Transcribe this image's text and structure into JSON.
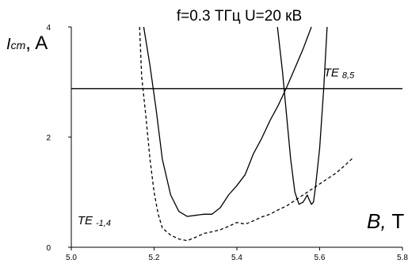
{
  "chart_data": {
    "type": "line",
    "title": "f=0.3 ТГц U=20 кВ",
    "ylabel": {
      "main": "I",
      "sub": "cm",
      "unit": ", A"
    },
    "xlabel": {
      "main": "B,",
      "unit": " T"
    },
    "xlim": [
      5.0,
      5.8
    ],
    "ylim": [
      0,
      4
    ],
    "xticks": [
      "5.0",
      "5.2",
      "5.4",
      "5.6",
      "5.8"
    ],
    "yticks": [
      "0",
      "2",
      "4"
    ],
    "ytick_values": [
      0,
      2,
      4
    ],
    "xtick_values": [
      5.0,
      5.2,
      5.4,
      5.6,
      5.8
    ],
    "grid": false,
    "annotations": [
      {
        "main": "TE",
        "sub": "8,5",
        "x": 5.61,
        "y": 3.1
      },
      {
        "main": "TE",
        "sub": "-1,4",
        "x": 5.015,
        "y": 0.42
      }
    ],
    "series": [
      {
        "style": "solid",
        "x": [
          5.175,
          5.19,
          5.205,
          5.22,
          5.24,
          5.26,
          5.28,
          5.3,
          5.32,
          5.34,
          5.36,
          5.38,
          5.4,
          5.42,
          5.44,
          5.46,
          5.48,
          5.5,
          5.52,
          5.54,
          5.56,
          5.57,
          5.58
        ],
        "y": [
          4.0,
          3.3,
          2.5,
          1.6,
          0.95,
          0.65,
          0.56,
          0.58,
          0.6,
          0.6,
          0.72,
          0.95,
          1.12,
          1.32,
          1.7,
          1.98,
          2.3,
          2.58,
          2.9,
          3.25,
          3.6,
          3.8,
          4.0
        ]
      },
      {
        "style": "solid",
        "x": [
          5.498,
          5.51,
          5.52,
          5.53,
          5.54,
          5.55,
          5.56,
          5.565,
          5.57,
          5.575,
          5.58,
          5.585,
          5.59,
          5.6,
          5.61,
          5.618
        ],
        "y": [
          4.0,
          3.2,
          2.4,
          1.6,
          1.0,
          0.78,
          0.82,
          0.88,
          0.95,
          0.86,
          0.78,
          0.82,
          1.1,
          1.8,
          2.9,
          4.0
        ]
      },
      {
        "style": "dashed",
        "x": [
          5.165,
          5.17,
          5.18,
          5.19,
          5.2,
          5.21,
          5.22,
          5.24,
          5.26,
          5.28,
          5.3,
          5.32,
          5.34,
          5.36,
          5.38,
          5.4,
          5.42,
          5.44,
          5.46,
          5.48,
          5.5,
          5.52,
          5.54,
          5.56,
          5.58,
          5.6,
          5.62,
          5.64,
          5.66,
          5.68
        ],
        "y": [
          4.0,
          3.1,
          2.4,
          1.6,
          1.0,
          0.6,
          0.35,
          0.22,
          0.15,
          0.12,
          0.18,
          0.25,
          0.28,
          0.32,
          0.38,
          0.45,
          0.42,
          0.48,
          0.55,
          0.6,
          0.68,
          0.75,
          0.85,
          0.95,
          1.05,
          1.15,
          1.25,
          1.35,
          1.48,
          1.62
        ]
      },
      {
        "style": "solid",
        "x": [
          5.0,
          5.8
        ],
        "y": [
          2.88,
          2.88
        ]
      }
    ]
  }
}
